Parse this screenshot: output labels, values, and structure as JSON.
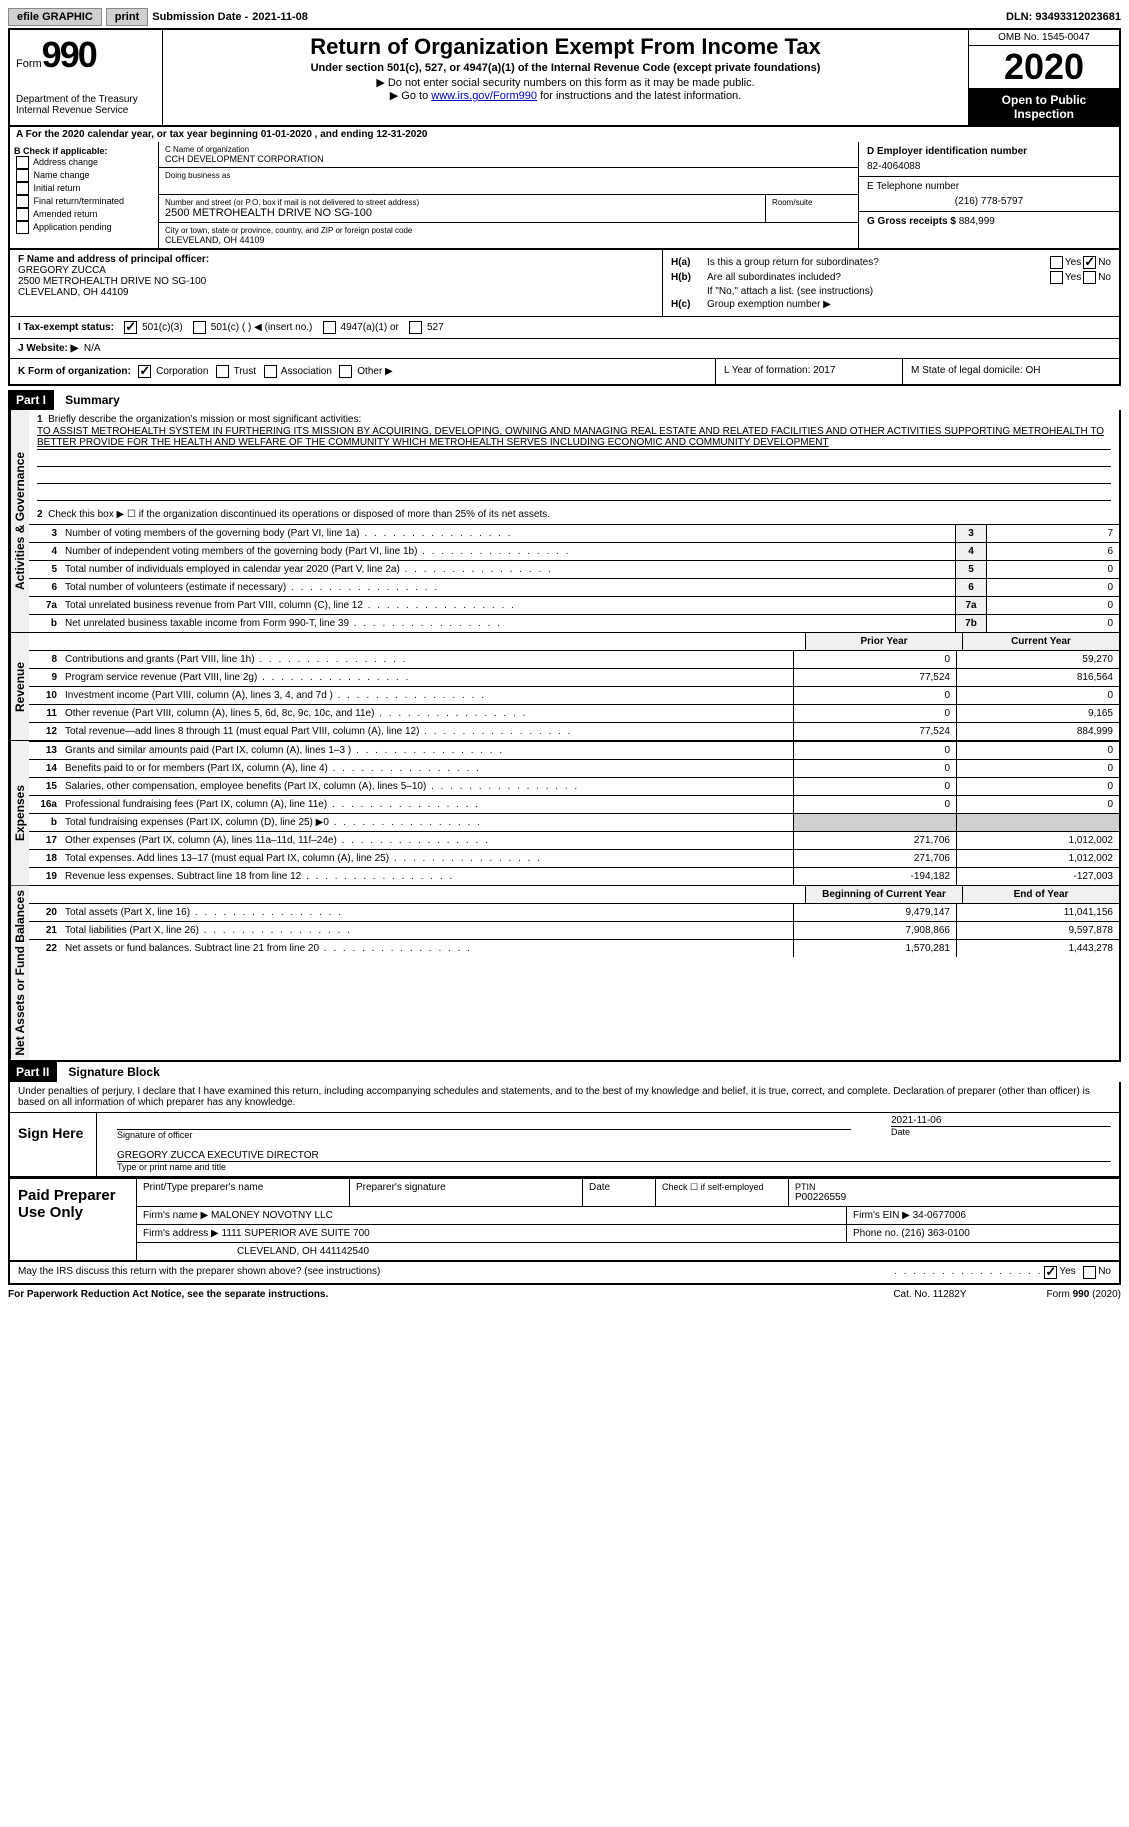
{
  "topbar": {
    "efile": "efile GRAPHIC",
    "print": "print",
    "sub_label": "Submission Date - ",
    "sub_date": "2021-11-08",
    "dln": "DLN: 93493312023681"
  },
  "header": {
    "form": "Form",
    "num": "990",
    "dept": "Department of the Treasury\nInternal Revenue Service",
    "title": "Return of Organization Exempt From Income Tax",
    "subtitle": "Under section 501(c), 527, or 4947(a)(1) of the Internal Revenue Code (except private foundations)",
    "inst1": "▶ Do not enter social security numbers on this form as it may be made public.",
    "inst2a": "▶ Go to ",
    "inst2b": "www.irs.gov/Form990",
    "inst2c": " for instructions and the latest information.",
    "omb": "OMB No. 1545-0047",
    "year": "2020",
    "open": "Open to Public Inspection"
  },
  "taxyear": "A For the 2020 calendar year, or tax year beginning 01-01-2020    , and ending 12-31-2020",
  "b": {
    "label": "B Check if applicable:",
    "items": [
      "Address change",
      "Name change",
      "Initial return",
      "Final return/terminated",
      "Amended return",
      "Application pending"
    ]
  },
  "c": {
    "name_label": "C Name of organization",
    "name": "CCH DEVELOPMENT CORPORATION",
    "dba_label": "Doing business as",
    "dba": "",
    "addr_label": "Number and street (or P.O. box if mail is not delivered to street address)",
    "addr": "2500 METROHEALTH DRIVE NO SG-100",
    "room_label": "Room/suite",
    "city_label": "City or town, state or province, country, and ZIP or foreign postal code",
    "city": "CLEVELAND, OH  44109"
  },
  "d": {
    "label": "D Employer identification number",
    "val": "82-4064088"
  },
  "e": {
    "label": "E Telephone number",
    "val": "(216) 778-5797"
  },
  "g": {
    "label": "G Gross receipts $",
    "val": "884,999"
  },
  "f": {
    "label": "F Name and address of principal officer:",
    "name": "GREGORY ZUCCA",
    "addr": "2500 METROHEALTH DRIVE NO SG-100",
    "city": "CLEVELAND, OH  44109"
  },
  "h": {
    "a": "Is this a group return for subordinates?",
    "b": "Are all subordinates included?",
    "bnote": "If \"No,\" attach a list. (see instructions)",
    "c": "Group exemption number ▶"
  },
  "i": {
    "label": "I   Tax-exempt status:",
    "opts": [
      "501(c)(3)",
      "501(c) (  ) ◀ (insert no.)",
      "4947(a)(1) or",
      "527"
    ]
  },
  "j": {
    "label": "J   Website: ▶",
    "val": "N/A"
  },
  "k": {
    "label": "K Form of organization:",
    "opts": [
      "Corporation",
      "Trust",
      "Association",
      "Other ▶"
    ]
  },
  "l": "L Year of formation: 2017",
  "m": "M State of legal domicile: OH",
  "part1": {
    "header": "Part I",
    "title": "Summary",
    "mission_label": "Briefly describe the organization's mission or most significant activities:",
    "mission": "TO ASSIST METROHEALTH SYSTEM IN FURTHERING ITS MISSION BY ACQUIRING, DEVELOPING, OWNING AND MANAGING REAL ESTATE AND RELATED FACILITIES AND OTHER ACTIVITIES SUPPORTING METROHEALTH TO BETTER PROVIDE FOR THE HEALTH AND WELFARE OF THE COMMUNITY WHICH METROHEALTH SERVES INCLUDING ECONOMIC AND COMMUNITY DEVELOPMENT",
    "line2": "Check this box ▶ ☐  if the organization discontinued its operations or disposed of more than 25% of its net assets."
  },
  "gov_lines": [
    {
      "n": "3",
      "t": "Number of voting members of the governing body (Part VI, line 1a)",
      "box": "3",
      "v": "7"
    },
    {
      "n": "4",
      "t": "Number of independent voting members of the governing body (Part VI, line 1b)",
      "box": "4",
      "v": "6"
    },
    {
      "n": "5",
      "t": "Total number of individuals employed in calendar year 2020 (Part V, line 2a)",
      "box": "5",
      "v": "0"
    },
    {
      "n": "6",
      "t": "Total number of volunteers (estimate if necessary)",
      "box": "6",
      "v": "0"
    },
    {
      "n": "7a",
      "t": "Total unrelated business revenue from Part VIII, column (C), line 12",
      "box": "7a",
      "v": "0"
    },
    {
      "n": "b",
      "t": "Net unrelated business taxable income from Form 990-T, line 39",
      "box": "7b",
      "v": "0"
    }
  ],
  "col_headers": {
    "py": "Prior Year",
    "cy": "Current Year"
  },
  "revenue_lines": [
    {
      "n": "8",
      "t": "Contributions and grants (Part VIII, line 1h)",
      "py": "0",
      "cy": "59,270"
    },
    {
      "n": "9",
      "t": "Program service revenue (Part VIII, line 2g)",
      "py": "77,524",
      "cy": "816,564"
    },
    {
      "n": "10",
      "t": "Investment income (Part VIII, column (A), lines 3, 4, and 7d )",
      "py": "0",
      "cy": "0"
    },
    {
      "n": "11",
      "t": "Other revenue (Part VIII, column (A), lines 5, 6d, 8c, 9c, 10c, and 11e)",
      "py": "0",
      "cy": "9,165"
    },
    {
      "n": "12",
      "t": "Total revenue—add lines 8 through 11 (must equal Part VIII, column (A), line 12)",
      "py": "77,524",
      "cy": "884,999"
    }
  ],
  "expense_lines": [
    {
      "n": "13",
      "t": "Grants and similar amounts paid (Part IX, column (A), lines 1–3 )",
      "py": "0",
      "cy": "0"
    },
    {
      "n": "14",
      "t": "Benefits paid to or for members (Part IX, column (A), line 4)",
      "py": "0",
      "cy": "0"
    },
    {
      "n": "15",
      "t": "Salaries, other compensation, employee benefits (Part IX, column (A), lines 5–10)",
      "py": "0",
      "cy": "0"
    },
    {
      "n": "16a",
      "t": "Professional fundraising fees (Part IX, column (A), line 11e)",
      "py": "0",
      "cy": "0"
    },
    {
      "n": "b",
      "t": "Total fundraising expenses (Part IX, column (D), line 25) ▶0",
      "py": "",
      "cy": "",
      "gray": true
    },
    {
      "n": "17",
      "t": "Other expenses (Part IX, column (A), lines 11a–11d, 11f–24e)",
      "py": "271,706",
      "cy": "1,012,002"
    },
    {
      "n": "18",
      "t": "Total expenses. Add lines 13–17 (must equal Part IX, column (A), line 25)",
      "py": "271,706",
      "cy": "1,012,002"
    },
    {
      "n": "19",
      "t": "Revenue less expenses. Subtract line 18 from line 12",
      "py": "-194,182",
      "cy": "-127,003"
    }
  ],
  "col_headers2": {
    "py": "Beginning of Current Year",
    "cy": "End of Year"
  },
  "asset_lines": [
    {
      "n": "20",
      "t": "Total assets (Part X, line 16)",
      "py": "9,479,147",
      "cy": "11,041,156"
    },
    {
      "n": "21",
      "t": "Total liabilities (Part X, line 26)",
      "py": "7,908,866",
      "cy": "9,597,878"
    },
    {
      "n": "22",
      "t": "Net assets or fund balances. Subtract line 21 from line 20",
      "py": "1,570,281",
      "cy": "1,443,278"
    }
  ],
  "part2": {
    "header": "Part II",
    "title": "Signature Block",
    "intro": "Under penalties of perjury, I declare that I have examined this return, including accompanying schedules and statements, and to the best of my knowledge and belief, it is true, correct, and complete. Declaration of preparer (other than officer) is based on all information of which preparer has any knowledge."
  },
  "sign": {
    "left": "Sign Here",
    "sig_label": "Signature of officer",
    "date": "2021-11-06",
    "date_label": "Date",
    "name": "GREGORY ZUCCA EXECUTIVE DIRECTOR",
    "name_label": "Type or print name and title"
  },
  "paid": {
    "left": "Paid Preparer Use Only",
    "r1": {
      "c1": "Print/Type preparer's name",
      "c2": "Preparer's signature",
      "c3": "Date",
      "c4a": "Check ☐ if self-employed",
      "c5a": "PTIN",
      "c5b": "P00226559"
    },
    "r2": {
      "c1": "Firm's name    ▶ MALONEY NOVOTNY LLC",
      "c2": "Firm's EIN ▶ 34-0677006"
    },
    "r3": {
      "c1": "Firm's address ▶ 1111 SUPERIOR AVE SUITE 700",
      "c2": "Phone no. (216) 363-0100"
    },
    "r4": "CLEVELAND, OH  441142540"
  },
  "discuss": "May the IRS discuss this return with the preparer shown above? (see instructions)",
  "footer": {
    "l": "For Paperwork Reduction Act Notice, see the separate instructions.",
    "m": "Cat. No. 11282Y",
    "r": "Form 990 (2020)"
  },
  "tabs": {
    "gov": "Activities & Governance",
    "rev": "Revenue",
    "exp": "Expenses",
    "net": "Net Assets or Fund Balances"
  }
}
